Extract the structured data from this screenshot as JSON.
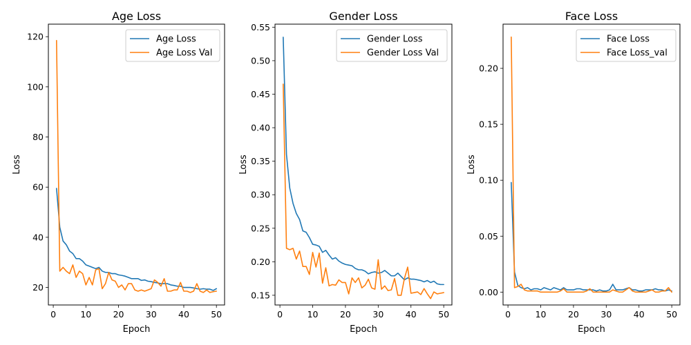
{
  "colors": {
    "series1": "#1f77b4",
    "series2": "#ff7f0e"
  },
  "chart_data": [
    {
      "type": "line",
      "title": "Age Loss",
      "xlabel": "Epoch",
      "ylabel": "Loss",
      "xlim": [
        -1.5,
        52.5
      ],
      "ylim": [
        13,
        125
      ],
      "xticks": [
        0,
        10,
        20,
        30,
        40,
        50
      ],
      "yticks": [
        20,
        40,
        60,
        80,
        100,
        120
      ],
      "ytick_labels": [
        "20",
        "40",
        "60",
        "80",
        "100",
        "120"
      ],
      "legend_position": "top-right",
      "x": [
        1,
        2,
        3,
        4,
        5,
        6,
        7,
        8,
        9,
        10,
        11,
        12,
        13,
        14,
        15,
        16,
        17,
        18,
        19,
        20,
        21,
        22,
        23,
        24,
        25,
        26,
        27,
        28,
        29,
        30,
        31,
        32,
        33,
        34,
        35,
        36,
        37,
        38,
        39,
        40,
        41,
        42,
        43,
        44,
        45,
        46,
        47,
        48,
        49,
        50
      ],
      "series": [
        {
          "name": "Age Loss",
          "color": "#1f77b4",
          "values": [
            59.5,
            44,
            38.5,
            37,
            34.5,
            33.5,
            31.5,
            31.5,
            30.5,
            29,
            28.5,
            28,
            27.5,
            28,
            26.5,
            26,
            26,
            25.5,
            25.5,
            25,
            24.8,
            24.5,
            24,
            23.5,
            23.5,
            23.5,
            22.8,
            23,
            22.5,
            22.3,
            22,
            21.8,
            21.5,
            21.5,
            21.5,
            21,
            20.8,
            20.5,
            20.5,
            20,
            20,
            20,
            19.8,
            19.5,
            19.3,
            19.5,
            19.3,
            19.3,
            18.8,
            19.5
          ]
        },
        {
          "name": "Age Loss Val",
          "color": "#ff7f0e",
          "values": [
            118.5,
            26.5,
            28,
            26.5,
            25.5,
            29,
            24,
            26.5,
            25.5,
            21,
            24,
            21,
            27,
            27.5,
            19.5,
            21.5,
            26,
            23,
            22.5,
            20,
            21,
            19,
            21.5,
            21.5,
            19,
            18.5,
            19,
            18.5,
            19,
            19.5,
            23,
            22,
            20.5,
            23.5,
            18.5,
            18.5,
            19,
            19,
            22,
            18.5,
            18.5,
            18,
            18.5,
            21.5,
            18.5,
            18,
            19,
            18,
            18.3,
            18.5
          ]
        }
      ]
    },
    {
      "type": "line",
      "title": "Gender Loss",
      "xlabel": "Epoch",
      "ylabel": "Loss",
      "xlim": [
        -1.5,
        52.5
      ],
      "ylim": [
        0.1355,
        0.5545
      ],
      "xticks": [
        0,
        10,
        20,
        30,
        40,
        50
      ],
      "yticks": [
        0.15,
        0.2,
        0.25,
        0.3,
        0.35,
        0.4,
        0.45,
        0.5,
        0.55
      ],
      "ytick_labels": [
        "0.15",
        "0.20",
        "0.25",
        "0.30",
        "0.35",
        "0.40",
        "0.45",
        "0.50",
        "0.55"
      ],
      "legend_position": "top-right",
      "x": [
        1,
        2,
        3,
        4,
        5,
        6,
        7,
        8,
        9,
        10,
        11,
        12,
        13,
        14,
        15,
        16,
        17,
        18,
        19,
        20,
        21,
        22,
        23,
        24,
        25,
        26,
        27,
        28,
        29,
        30,
        31,
        32,
        33,
        34,
        35,
        36,
        37,
        38,
        39,
        40,
        41,
        42,
        43,
        44,
        45,
        46,
        47,
        48,
        49,
        50
      ],
      "series": [
        {
          "name": "Gender Loss",
          "color": "#1f77b4",
          "values": [
            0.535,
            0.36,
            0.31,
            0.287,
            0.272,
            0.263,
            0.246,
            0.244,
            0.236,
            0.226,
            0.225,
            0.223,
            0.214,
            0.217,
            0.21,
            0.204,
            0.206,
            0.201,
            0.198,
            0.196,
            0.195,
            0.194,
            0.19,
            0.188,
            0.188,
            0.186,
            0.182,
            0.184,
            0.185,
            0.183,
            0.184,
            0.187,
            0.183,
            0.179,
            0.179,
            0.183,
            0.178,
            0.173,
            0.176,
            0.174,
            0.174,
            0.173,
            0.172,
            0.17,
            0.172,
            0.169,
            0.171,
            0.167,
            0.166,
            0.166
          ]
        },
        {
          "name": "Gender Loss Val",
          "color": "#ff7f0e",
          "values": [
            0.465,
            0.22,
            0.218,
            0.22,
            0.204,
            0.216,
            0.193,
            0.193,
            0.181,
            0.214,
            0.192,
            0.213,
            0.168,
            0.191,
            0.164,
            0.166,
            0.165,
            0.173,
            0.169,
            0.169,
            0.152,
            0.176,
            0.169,
            0.176,
            0.161,
            0.165,
            0.174,
            0.161,
            0.159,
            0.203,
            0.159,
            0.164,
            0.157,
            0.158,
            0.175,
            0.15,
            0.15,
            0.175,
            0.192,
            0.153,
            0.154,
            0.155,
            0.151,
            0.16,
            0.152,
            0.145,
            0.155,
            0.152,
            0.153,
            0.154
          ]
        }
      ]
    },
    {
      "type": "line",
      "title": "Face Loss",
      "xlabel": "Epoch",
      "ylabel": "Loss",
      "xlim": [
        -1.5,
        52.5
      ],
      "ylim": [
        -0.0115,
        0.2395
      ],
      "xticks": [
        0,
        10,
        20,
        30,
        40,
        50
      ],
      "yticks": [
        0.0,
        0.05,
        0.1,
        0.15,
        0.2
      ],
      "ytick_labels": [
        "0.00",
        "0.05",
        "0.10",
        "0.15",
        "0.20"
      ],
      "legend_position": "top-right",
      "x": [
        1,
        2,
        3,
        4,
        5,
        6,
        7,
        8,
        9,
        10,
        11,
        12,
        13,
        14,
        15,
        16,
        17,
        18,
        19,
        20,
        21,
        22,
        23,
        24,
        25,
        26,
        27,
        28,
        29,
        30,
        31,
        32,
        33,
        34,
        35,
        36,
        37,
        38,
        39,
        40,
        41,
        42,
        43,
        44,
        45,
        46,
        47,
        48,
        49,
        50
      ],
      "series": [
        {
          "name": "Face Loss",
          "color": "#1f77b4",
          "values": [
            0.098,
            0.018,
            0.006,
            0.004,
            0.003,
            0.004,
            0.002,
            0.003,
            0.003,
            0.002,
            0.004,
            0.003,
            0.002,
            0.004,
            0.003,
            0.002,
            0.004,
            0.002,
            0.002,
            0.002,
            0.003,
            0.003,
            0.002,
            0.002,
            0.002,
            0.002,
            0.001,
            0.002,
            0.001,
            0.001,
            0.002,
            0.007,
            0.002,
            0.002,
            0.002,
            0.003,
            0.004,
            0.002,
            0.002,
            0.001,
            0.001,
            0.002,
            0.002,
            0.002,
            0.003,
            0.002,
            0.002,
            0.001,
            0.002,
            0.001
          ]
        },
        {
          "name": "Face Loss_val",
          "color": "#ff7f0e",
          "values": [
            0.228,
            0.004,
            0.005,
            0.007,
            0.002,
            0.001,
            0.001,
            0.001,
            0.001,
            0.0,
            0.0,
            0.0,
            0.0,
            0.0,
            0.0,
            0.001,
            0.003,
            0.0,
            0.0,
            0.0,
            0.0,
            0.0,
            0.0,
            0.001,
            0.003,
            0.0,
            0.0,
            0.0,
            0.0,
            0.0,
            0.0,
            0.002,
            0.001,
            0.0,
            0.0,
            0.002,
            0.004,
            0.001,
            0.0,
            0.0,
            0.0,
            0.0,
            0.001,
            0.002,
            0.0,
            0.0,
            0.001,
            0.001,
            0.004,
            0.0
          ]
        }
      ]
    }
  ]
}
